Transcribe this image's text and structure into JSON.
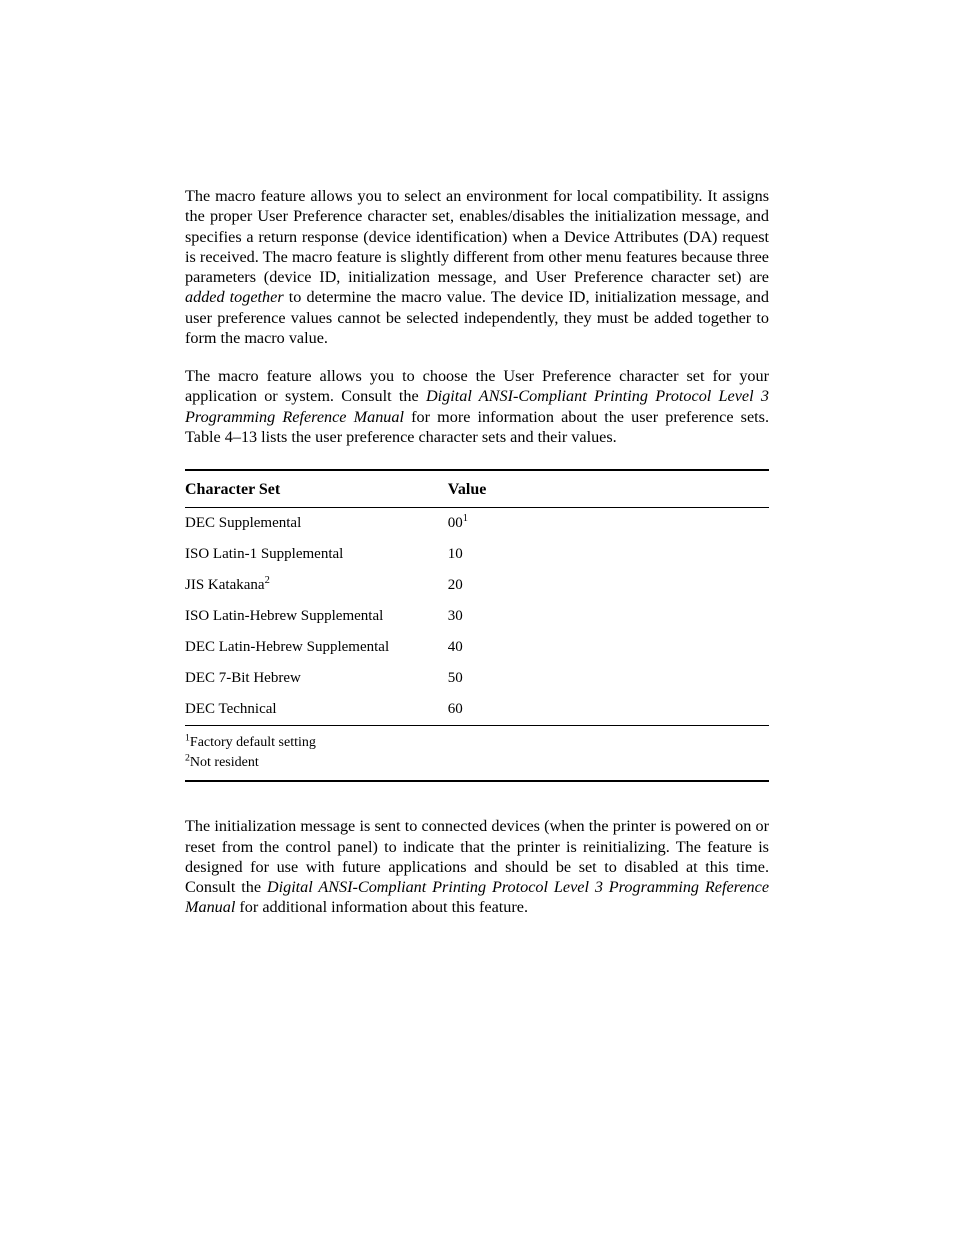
{
  "paragraphs": {
    "p1_a": "The macro feature allows you to select an environment for local compatibility.  It assigns the proper User Preference character set, enables/disables the initialization message, and specifies a return response (device identification) when a Device Attributes (DA) request is received. The macro feature is slightly different from other menu features because three parameters (device ID, initialization message, and User Preference character set) are ",
    "p1_em": "added together",
    "p1_b": " to determine the macro value. The device ID, initialization message, and user preference values cannot be selected independently, they must be added together to form the macro value.",
    "p2_a": "The macro feature allows you to choose the User Preference character set for your application or system. Consult the ",
    "p2_em": "Digital ANSI-Compliant Printing Protocol Level 3 Programming Reference Manual",
    "p2_b": " for more information about the user preference sets.  Table 4–13 lists the user preference character sets and their values.",
    "p3_a": "The initialization message is sent to connected devices (when the printer is powered on or reset from the control panel) to indicate that the printer is reinitializing. The feature is designed for use with future applications and should be set to disabled at this time. Consult the ",
    "p3_em": "Digital ANSI-Compliant Printing Protocol Level 3 Programming Reference Manual",
    "p3_b": " for additional information about this feature."
  },
  "table": {
    "headers": {
      "col1": "Character Set",
      "col2": "Value"
    },
    "rows": [
      {
        "cs": "DEC Supplemental",
        "cs_sup": "",
        "val": "00",
        "val_sup": "1"
      },
      {
        "cs": "ISO Latin-1 Supplemental",
        "cs_sup": "",
        "val": "10",
        "val_sup": ""
      },
      {
        "cs": "JIS Katakana",
        "cs_sup": "2",
        "val": "20",
        "val_sup": ""
      },
      {
        "cs": "ISO Latin-Hebrew Supplemental",
        "cs_sup": "",
        "val": "30",
        "val_sup": ""
      },
      {
        "cs": "DEC Latin-Hebrew Supplemental",
        "cs_sup": "",
        "val": "40",
        "val_sup": ""
      },
      {
        "cs": "DEC 7-Bit Hebrew",
        "cs_sup": "",
        "val": "50",
        "val_sup": ""
      },
      {
        "cs": "DEC Technical",
        "cs_sup": "",
        "val": "60",
        "val_sup": ""
      }
    ],
    "footnotes": [
      {
        "mark": "1",
        "text": "Factory default setting"
      },
      {
        "mark": "2",
        "text": "Not resident"
      }
    ]
  }
}
